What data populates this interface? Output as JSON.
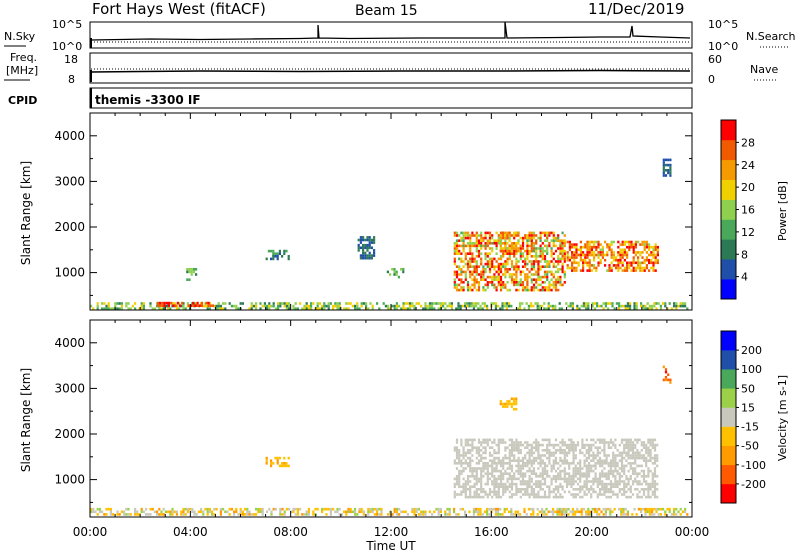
{
  "header": {
    "station": "Fort Hays West (fitACF)",
    "beam": "Beam 15",
    "date": "11/Dec/2019"
  },
  "top_panels": {
    "nsky_label": "N.Sky",
    "nsky_ticks": [
      "10^5",
      "10^0"
    ],
    "nsearch_label": "N.Search",
    "nsearch_ticks": [
      "10^5",
      "10^0"
    ],
    "freq_label_1": "Freq.",
    "freq_label_2": "[MHz]",
    "freq_ticks": [
      "18",
      "8"
    ],
    "nave_label": "Nave",
    "nave_ticks": [
      "60",
      "0"
    ],
    "cpid_label": "CPID",
    "cpid_text": "themis -3300 IF"
  },
  "colors": {
    "power_scale": [
      "#0000ff",
      "#1f4fa8",
      "#2c7a55",
      "#4aa85a",
      "#8fd14f",
      "#f0d000",
      "#f59a00",
      "#f05a00",
      "#ff0000"
    ],
    "velocity_scale": [
      "#ff0000",
      "#ff5a00",
      "#ff9a00",
      "#ffc000",
      "#c8c8bc",
      "#9bd148",
      "#4aa85a",
      "#1f4fa8",
      "#0000ff"
    ],
    "ground_scatter": "#c8c8bc"
  },
  "chart_data": [
    {
      "type": "heatmap",
      "title": "",
      "xlabel": "Time UT",
      "ylabel": "Slant Range [km]",
      "xlim": [
        "00:00",
        "24:00"
      ],
      "ylim": [
        180,
        4500
      ],
      "x_ticks": [
        "00:00",
        "04:00",
        "08:00",
        "12:00",
        "16:00",
        "20:00",
        "00:00"
      ],
      "y_ticks": [
        "1000",
        "2000",
        "3000",
        "4000"
      ],
      "colorbar": {
        "label": "Power [dB]",
        "ticks": [
          "4",
          "8",
          "12",
          "16",
          "20",
          "24",
          "28"
        ],
        "range": [
          0,
          30
        ]
      },
      "regions": [
        {
          "time": [
            "00:00",
            "23:50"
          ],
          "range_km": [
            200,
            350
          ],
          "power_db": [
            8,
            20
          ]
        },
        {
          "time": [
            "02:40",
            "05:00"
          ],
          "range_km": [
            220,
            360
          ],
          "power_db": [
            24,
            30
          ]
        },
        {
          "time": [
            "03:50",
            "04:15"
          ],
          "range_km": [
            800,
            1100
          ],
          "power_db": [
            8,
            16
          ]
        },
        {
          "time": [
            "07:00",
            "08:00"
          ],
          "range_km": [
            1250,
            1500
          ],
          "power_db": [
            4,
            12
          ]
        },
        {
          "time": [
            "10:40",
            "11:20"
          ],
          "range_km": [
            1300,
            1800
          ],
          "power_db": [
            4,
            10
          ]
        },
        {
          "time": [
            "11:50",
            "12:30"
          ],
          "range_km": [
            850,
            1100
          ],
          "power_db": [
            8,
            16
          ]
        },
        {
          "time": [
            "14:30",
            "19:00"
          ],
          "range_km": [
            600,
            1900
          ],
          "power_db": [
            12,
            30
          ]
        },
        {
          "time": [
            "16:20",
            "17:10"
          ],
          "range_km": [
            1450,
            1900
          ],
          "power_db": [
            16,
            26
          ]
        },
        {
          "time": [
            "19:00",
            "22:40"
          ],
          "range_km": [
            1000,
            1700
          ],
          "power_db": [
            16,
            30
          ]
        },
        {
          "time": [
            "22:50",
            "23:10"
          ],
          "range_km": [
            3100,
            3500
          ],
          "power_db": [
            4,
            8
          ]
        }
      ]
    },
    {
      "type": "heatmap",
      "title": "",
      "xlabel": "Time UT",
      "ylabel": "Slant Range [km]",
      "xlim": [
        "00:00",
        "24:00"
      ],
      "ylim": [
        180,
        4500
      ],
      "x_ticks": [
        "00:00",
        "04:00",
        "08:00",
        "12:00",
        "16:00",
        "20:00",
        "00:00"
      ],
      "y_ticks": [
        "1000",
        "2000",
        "3000",
        "4000"
      ],
      "colorbar": {
        "label": "Velocity [m s-1]",
        "ticks": [
          "-200",
          "-100",
          "-50",
          "-15",
          "15",
          "50",
          "100",
          "200"
        ],
        "range": [
          -250,
          250
        ]
      },
      "regions": [
        {
          "time": [
            "00:00",
            "23:50"
          ],
          "range_km": [
            200,
            380
          ],
          "velocity_ms": [
            -100,
            50
          ]
        },
        {
          "time": [
            "07:00",
            "08:00"
          ],
          "range_km": [
            1250,
            1500
          ],
          "velocity_ms": [
            -100,
            -50
          ]
        },
        {
          "time": [
            "14:30",
            "22:40"
          ],
          "range_km": [
            600,
            1900
          ],
          "velocity_ms": [
            -15,
            15
          ]
        },
        {
          "time": [
            "16:20",
            "17:00"
          ],
          "range_km": [
            2500,
            2800
          ],
          "velocity_ms": [
            -100,
            -50
          ]
        },
        {
          "time": [
            "22:50",
            "23:10"
          ],
          "range_km": [
            3100,
            3500
          ],
          "velocity_ms": [
            -200,
            -100
          ]
        }
      ]
    }
  ]
}
